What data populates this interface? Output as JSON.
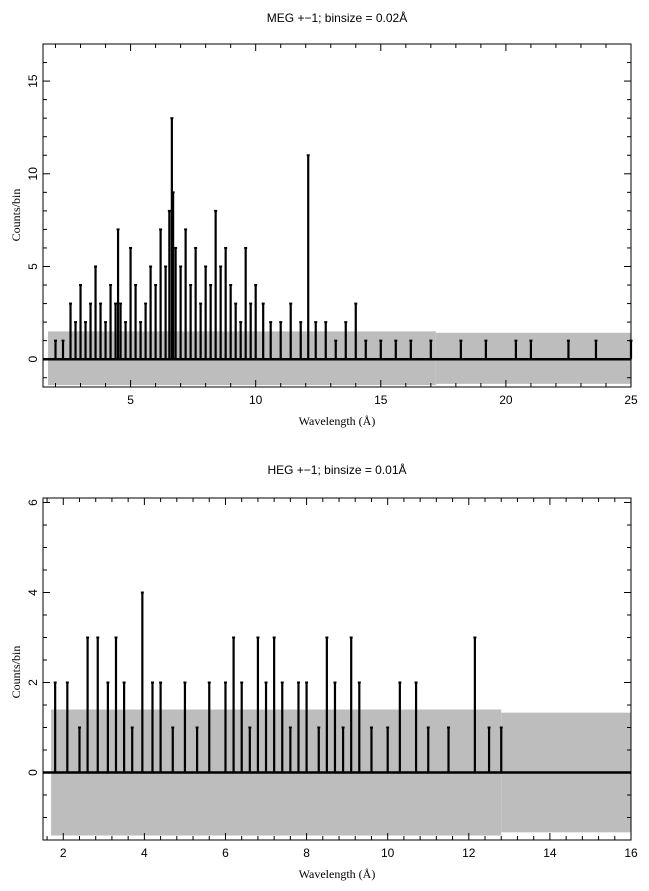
{
  "chart_data": [
    {
      "type": "line",
      "title": "MEG +−1; binsize = 0.02Å",
      "xlabel": "Wavelength (Å)",
      "ylabel": "Counts/bin",
      "xlim": [
        1.5,
        25
      ],
      "ylim": [
        -1.5,
        17
      ],
      "xticks": [
        "5",
        "10",
        "15",
        "20",
        "25"
      ],
      "yticks": [
        "0",
        "5",
        "10",
        "15"
      ],
      "grid": false,
      "error_band_approx": {
        "upper": 1.5,
        "lower": -1.4,
        "data_x_range": [
          1.7,
          17.2
        ]
      },
      "series": [
        {
          "values_note": "counts per 0.02 Å bin (approximate readings of peak bins)",
          "x": [
            2.0,
            2.3,
            2.6,
            2.8,
            3.0,
            3.2,
            3.4,
            3.6,
            3.8,
            4.0,
            4.2,
            4.4,
            4.5,
            4.6,
            4.8,
            5.0,
            5.2,
            5.4,
            5.6,
            5.8,
            6.0,
            6.2,
            6.4,
            6.55,
            6.65,
            6.7,
            6.8,
            7.0,
            7.2,
            7.4,
            7.6,
            7.8,
            8.0,
            8.2,
            8.4,
            8.6,
            8.8,
            9.0,
            9.2,
            9.4,
            9.6,
            9.8,
            10.0,
            10.3,
            10.6,
            11.0,
            11.4,
            11.8,
            12.1,
            12.4,
            12.8,
            13.2,
            13.6,
            14.0,
            14.4,
            15.0,
            15.6,
            16.2,
            17.0,
            18.2,
            19.2,
            20.4,
            21.0,
            22.5,
            23.6,
            25.0
          ],
          "y": [
            1,
            1,
            3,
            2,
            4,
            2,
            3,
            5,
            3,
            2,
            4,
            3,
            7,
            3,
            2,
            6,
            4,
            2,
            3,
            5,
            4,
            7,
            5,
            8,
            13,
            9,
            6,
            5,
            7,
            4,
            6,
            3,
            5,
            4,
            8,
            5,
            6,
            4,
            3,
            2,
            6,
            3,
            4,
            3,
            2,
            2,
            3,
            2,
            11,
            2,
            2,
            1,
            2,
            3,
            1,
            1,
            1,
            1,
            1,
            1,
            1,
            1,
            1,
            1,
            1,
            1
          ]
        }
      ]
    },
    {
      "type": "line",
      "title": "HEG +−1; binsize = 0.01Å",
      "xlabel": "Wavelength (Å)",
      "ylabel": "Counts/bin",
      "xlim": [
        1.5,
        16
      ],
      "ylim": [
        -1.5,
        6.1
      ],
      "xticks": [
        "2",
        "4",
        "6",
        "8",
        "10",
        "12",
        "14",
        "16"
      ],
      "yticks": [
        "0",
        "2",
        "4",
        "6"
      ],
      "grid": false,
      "error_band_approx": {
        "upper": 1.4,
        "lower": -1.4,
        "data_x_range": [
          1.7,
          12.8
        ]
      },
      "series": [
        {
          "values_note": "counts per 0.01 Å bin (approximate readings of peak bins)",
          "x": [
            1.8,
            2.1,
            2.4,
            2.6,
            2.85,
            3.1,
            3.3,
            3.5,
            3.7,
            3.95,
            4.2,
            4.4,
            4.7,
            5.0,
            5.3,
            5.6,
            6.0,
            6.2,
            6.4,
            6.6,
            6.8,
            7.0,
            7.2,
            7.4,
            7.6,
            7.8,
            8.0,
            8.3,
            8.5,
            8.7,
            8.9,
            9.1,
            9.3,
            9.6,
            10.0,
            10.3,
            10.7,
            11.0,
            11.5,
            12.15,
            12.5,
            12.8
          ],
          "y": [
            2,
            2,
            1,
            3,
            3,
            2,
            3,
            2,
            1,
            4,
            2,
            2,
            1,
            2,
            1,
            2,
            2,
            3,
            2,
            1,
            3,
            2,
            3,
            2,
            1,
            2,
            2,
            1,
            3,
            2,
            1,
            3,
            2,
            1,
            1,
            2,
            2,
            1,
            1,
            3,
            1,
            1
          ]
        }
      ]
    }
  ]
}
